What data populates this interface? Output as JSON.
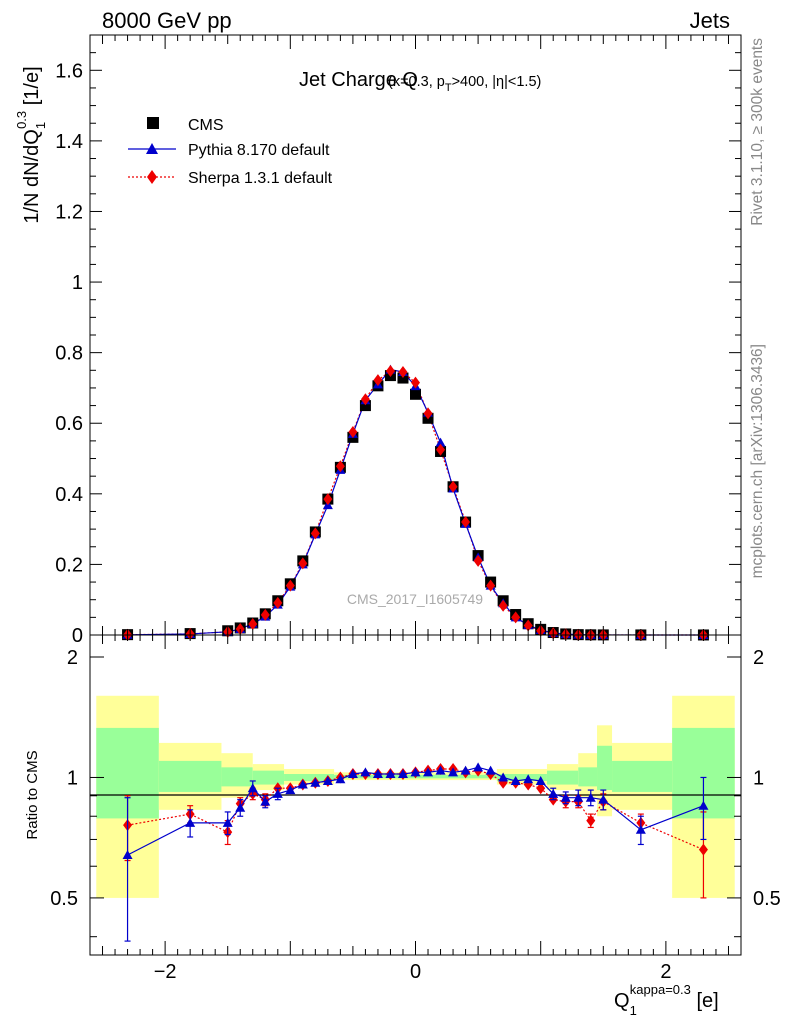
{
  "header": {
    "left": "8000 GeV pp",
    "right": "Jets"
  },
  "side_labels": {
    "upper": "Rivet 3.1.10, ≥ 300k events",
    "lower": "mcplots.cern.ch [arXiv:1306.3436]"
  },
  "colors": {
    "cms": "#000000",
    "pythia": "#0000cc",
    "sherpa": "#ee0000",
    "band_outer": "#ffff99",
    "band_inner": "#99ff99"
  },
  "chart_data": [
    {
      "type": "scatter",
      "panel": "main",
      "title": "Jet Charge Q",
      "title_condition": "(κ=0.3, p_T>400, |η|<1.5)",
      "ylabel": "1/N dN/dQ_1^0.3 [1/e]",
      "watermark": "CMS_2017_I1605749",
      "xlim": [
        -2.6,
        2.6
      ],
      "ylim": [
        0,
        1.7
      ],
      "yticks": [
        0,
        0.2,
        0.4,
        0.6,
        0.8,
        1,
        1.2,
        1.4,
        1.6
      ],
      "ytick_labels": [
        "0",
        "0.2",
        "0.4",
        "0.6",
        "0.8",
        "1",
        "1.2",
        "1.4",
        "1.6"
      ],
      "legend": {
        "position": "top-left",
        "entries": [
          "CMS",
          "Pythia 8.170 default",
          "Sherpa 1.3.1 default"
        ]
      },
      "x": [
        -2.3,
        -1.8,
        -1.5,
        -1.4,
        -1.3,
        -1.2,
        -1.1,
        -1.0,
        -0.9,
        -0.8,
        -0.7,
        -0.6,
        -0.5,
        -0.4,
        -0.3,
        -0.2,
        -0.1,
        0.0,
        0.1,
        0.2,
        0.3,
        0.4,
        0.5,
        0.6,
        0.7,
        0.8,
        0.9,
        1.0,
        1.1,
        1.2,
        1.3,
        1.4,
        1.5,
        1.8,
        2.3
      ],
      "series": [
        {
          "name": "CMS",
          "values": [
            0.001,
            0.004,
            0.012,
            0.02,
            0.034,
            0.06,
            0.097,
            0.145,
            0.21,
            0.292,
            0.385,
            0.475,
            0.56,
            0.65,
            0.706,
            0.735,
            0.728,
            0.682,
            0.614,
            0.52,
            0.42,
            0.32,
            0.225,
            0.15,
            0.097,
            0.058,
            0.032,
            0.016,
            0.007,
            0.003,
            0.001,
            0.0005,
            0.0003,
            0.0002,
            0.0001
          ]
        },
        {
          "name": "Pythia 8.170 default",
          "values": [
            0.0006,
            0.003,
            0.009,
            0.017,
            0.032,
            0.052,
            0.086,
            0.137,
            0.2,
            0.285,
            0.368,
            0.468,
            0.57,
            0.665,
            0.71,
            0.752,
            0.745,
            0.705,
            0.63,
            0.545,
            0.415,
            0.315,
            0.22,
            0.14,
            0.09,
            0.05,
            0.028,
            0.014,
            0.006,
            0.0025,
            0.001,
            0.0004,
            0.0002,
            0.0001,
            0.0001
          ]
        },
        {
          "name": "Sherpa 1.3.1 default",
          "values": [
            0.0008,
            0.0032,
            0.009,
            0.017,
            0.031,
            0.057,
            0.091,
            0.14,
            0.203,
            0.288,
            0.385,
            0.478,
            0.575,
            0.668,
            0.722,
            0.748,
            0.745,
            0.715,
            0.628,
            0.525,
            0.42,
            0.32,
            0.21,
            0.14,
            0.083,
            0.05,
            0.027,
            0.012,
            0.005,
            0.002,
            0.0008,
            0.0003,
            0.0002,
            0.0001,
            0.0001
          ]
        }
      ]
    },
    {
      "type": "line",
      "panel": "ratio",
      "ylabel": "Ratio to CMS",
      "xlabel": "Q_1^kappa=0.3 [e]",
      "xlim": [
        -2.6,
        2.6
      ],
      "ylim": [
        0.36,
        2.27
      ],
      "xticks": [
        -2,
        0,
        2
      ],
      "xtick_labels": [
        "−2",
        "0",
        "2"
      ],
      "yticks": [
        0.5,
        1,
        2
      ],
      "ytick_labels": [
        "0.5",
        "1",
        "2"
      ],
      "bands": [
        {
          "x0": -2.55,
          "x1": -2.05,
          "outer": [
            0.5,
            1.6
          ],
          "inner": [
            0.79,
            1.33
          ]
        },
        {
          "x0": -2.05,
          "x1": -1.55,
          "outer": [
            0.83,
            1.22
          ],
          "inner": [
            0.92,
            1.1
          ]
        },
        {
          "x0": -1.55,
          "x1": -1.3,
          "outer": [
            0.89,
            1.15
          ],
          "inner": [
            0.95,
            1.06
          ]
        },
        {
          "x0": -1.3,
          "x1": -1.05,
          "outer": [
            0.93,
            1.08
          ],
          "inner": [
            0.96,
            1.04
          ]
        },
        {
          "x0": -1.05,
          "x1": -0.65,
          "outer": [
            0.96,
            1.05
          ],
          "inner": [
            0.98,
            1.02
          ]
        },
        {
          "x0": -0.65,
          "x1": 0.65,
          "outer": [
            0.985,
            1.03
          ],
          "inner": [
            0.995,
            1.015
          ]
        },
        {
          "x0": 0.65,
          "x1": 1.05,
          "outer": [
            0.96,
            1.05
          ],
          "inner": [
            0.98,
            1.02
          ]
        },
        {
          "x0": 1.05,
          "x1": 1.3,
          "outer": [
            0.93,
            1.08
          ],
          "inner": [
            0.96,
            1.04
          ]
        },
        {
          "x0": 1.3,
          "x1": 1.45,
          "outer": [
            0.89,
            1.15
          ],
          "inner": [
            0.95,
            1.06
          ]
        },
        {
          "x0": 1.45,
          "x1": 1.57,
          "outer": [
            0.8,
            1.35
          ],
          "inner": [
            0.93,
            1.2
          ]
        },
        {
          "x0": 1.57,
          "x1": 2.05,
          "outer": [
            0.83,
            1.22
          ],
          "inner": [
            0.92,
            1.1
          ]
        },
        {
          "x0": 2.05,
          "x1": 2.55,
          "outer": [
            0.5,
            1.6
          ],
          "inner": [
            0.79,
            1.33
          ]
        }
      ],
      "x": [
        -2.3,
        -1.8,
        -1.5,
        -1.4,
        -1.3,
        -1.2,
        -1.1,
        -1.0,
        -0.9,
        -0.8,
        -0.7,
        -0.6,
        -0.5,
        -0.4,
        -0.3,
        -0.2,
        -0.1,
        0.0,
        0.1,
        0.2,
        0.3,
        0.4,
        0.5,
        0.6,
        0.7,
        0.8,
        0.9,
        1.0,
        1.1,
        1.2,
        1.3,
        1.4,
        1.5,
        1.8,
        2.3
      ],
      "series": [
        {
          "name": "Pythia 8.170 default",
          "values": [
            0.64,
            0.77,
            0.77,
            0.84,
            0.94,
            0.87,
            0.91,
            0.93,
            0.96,
            0.97,
            0.98,
            0.99,
            1.02,
            1.03,
            1.02,
            1.02,
            1.02,
            1.03,
            1.03,
            1.04,
            1.03,
            1.04,
            1.06,
            1.04,
            1.0,
            0.98,
            0.99,
            0.98,
            0.91,
            0.89,
            0.89,
            0.89,
            0.88,
            0.74,
            0.85
          ],
          "err": [
            0.25,
            0.06,
            0.05,
            0.04,
            0.04,
            0.03,
            0.03,
            0.02,
            0.02,
            0.015,
            0.01,
            0.01,
            0.01,
            0.01,
            0.01,
            0.01,
            0.01,
            0.01,
            0.01,
            0.01,
            0.01,
            0.01,
            0.01,
            0.01,
            0.01,
            0.015,
            0.02,
            0.02,
            0.03,
            0.03,
            0.04,
            0.04,
            0.05,
            0.06,
            0.15
          ]
        },
        {
          "name": "Sherpa 1.3.1 default",
          "values": [
            0.76,
            0.81,
            0.73,
            0.86,
            0.91,
            0.88,
            0.94,
            0.94,
            0.96,
            0.97,
            0.98,
            1.0,
            1.02,
            1.02,
            1.02,
            1.02,
            1.02,
            1.03,
            1.04,
            1.05,
            1.05,
            1.03,
            1.04,
            1.02,
            0.97,
            0.97,
            0.96,
            0.94,
            0.88,
            0.87,
            0.87,
            0.78,
            0.87,
            0.77,
            0.66
          ],
          "err": [
            0.14,
            0.04,
            0.05,
            0.03,
            0.03,
            0.03,
            0.02,
            0.02,
            0.015,
            0.01,
            0.01,
            0.01,
            0.01,
            0.01,
            0.01,
            0.01,
            0.01,
            0.01,
            0.01,
            0.01,
            0.01,
            0.01,
            0.01,
            0.01,
            0.01,
            0.01,
            0.015,
            0.02,
            0.02,
            0.03,
            0.03,
            0.03,
            0.04,
            0.04,
            0.16
          ]
        }
      ]
    }
  ]
}
